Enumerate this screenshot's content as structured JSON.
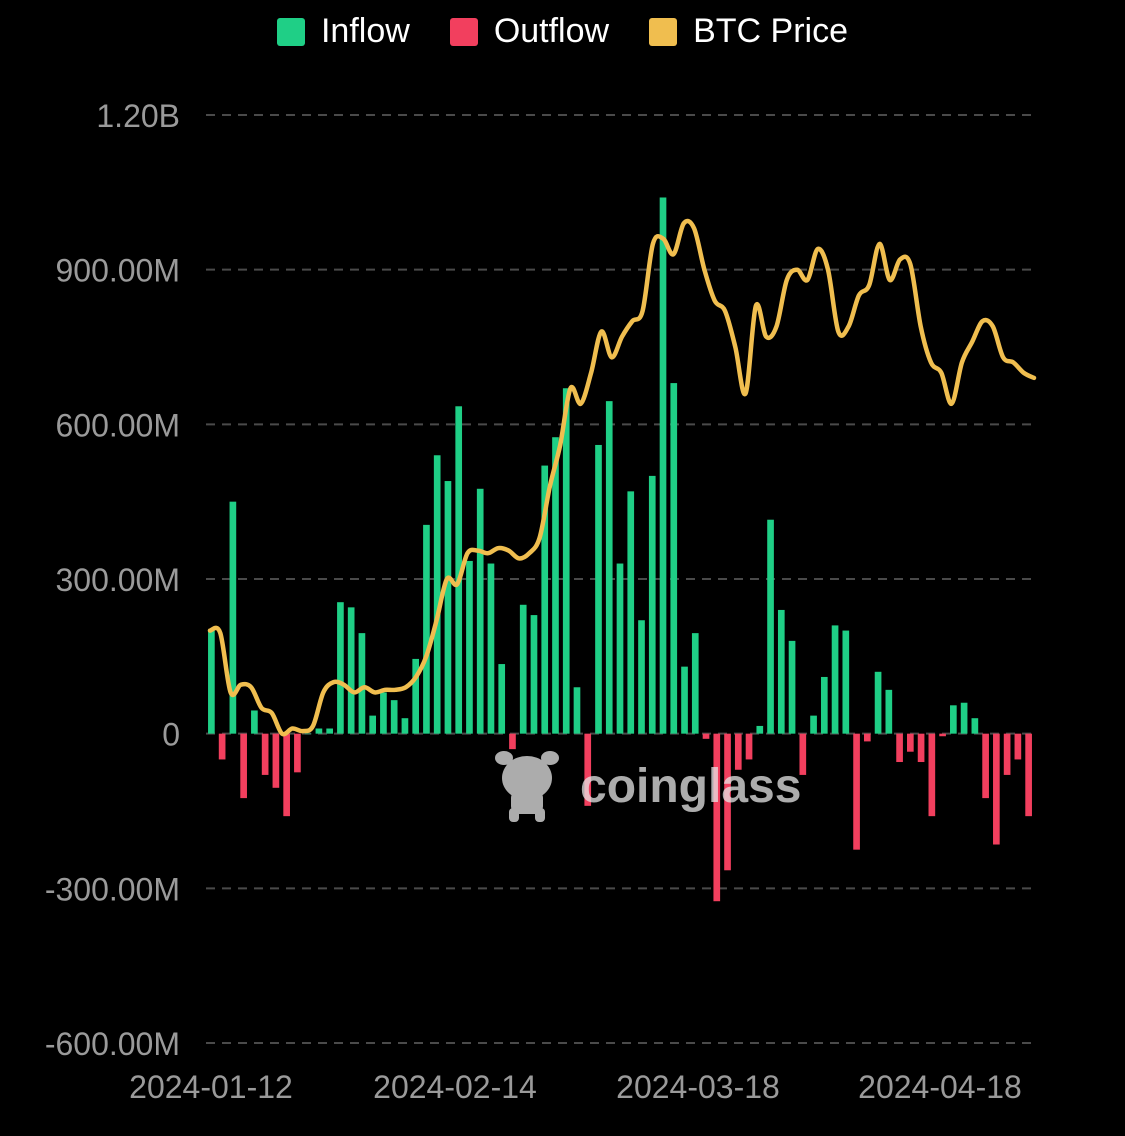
{
  "chart_data": {
    "type": "bar",
    "series": [
      {
        "name": "Inflow",
        "color": "#1fcf86"
      },
      {
        "name": "Outflow",
        "color": "#f23f5e"
      },
      {
        "name": "BTC Price",
        "color": "#f0be4f"
      }
    ],
    "x_tick_labels": [
      "2024-01-12",
      "2024-02-14",
      "2024-03-18",
      "2024-04-18"
    ],
    "y_tick_labels": [
      "1.20B",
      "900.00M",
      "600.00M",
      "300.00M",
      "0",
      "-300.00M",
      "-600.00M"
    ],
    "ylim": [
      -600,
      1200
    ],
    "y_unit": "M USD",
    "grid": true,
    "legend_position": "top",
    "flows_musd": [
      200,
      -50,
      450,
      -125,
      45,
      -80,
      -105,
      -160,
      -75,
      0,
      10,
      10,
      255,
      245,
      195,
      35,
      80,
      65,
      30,
      145,
      405,
      540,
      490,
      635,
      335,
      475,
      330,
      135,
      -30,
      250,
      230,
      520,
      575,
      670,
      90,
      -140,
      560,
      645,
      330,
      470,
      220,
      500,
      1040,
      680,
      130,
      195,
      -10,
      -325,
      -265,
      -70,
      -50,
      15,
      415,
      240,
      180,
      -80,
      35,
      110,
      210,
      200,
      -225,
      -15,
      120,
      85,
      -55,
      -35,
      -55,
      -160,
      -5,
      55,
      60,
      30,
      -125,
      -215,
      -80,
      -50,
      -160
    ],
    "btc_price_relative": [
      200,
      195,
      80,
      95,
      90,
      50,
      40,
      0,
      10,
      5,
      15,
      80,
      100,
      95,
      80,
      90,
      80,
      85,
      85,
      90,
      110,
      150,
      220,
      300,
      290,
      350,
      355,
      350,
      360,
      355,
      340,
      350,
      380,
      480,
      560,
      670,
      640,
      700,
      780,
      730,
      770,
      800,
      820,
      950,
      960,
      930,
      990,
      980,
      900,
      840,
      820,
      750,
      660,
      830,
      770,
      790,
      880,
      900,
      880,
      940,
      900,
      780,
      790,
      850,
      870,
      950,
      880,
      920,
      910,
      790,
      720,
      700,
      640,
      720,
      760,
      800,
      790,
      730,
      720,
      700,
      690
    ]
  },
  "watermark": {
    "text": "coinglass"
  }
}
